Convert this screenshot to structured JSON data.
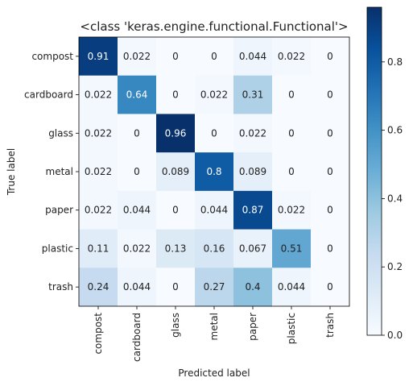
{
  "chart_data": {
    "type": "heatmap",
    "title": "<class 'keras.engine.functional.Functional'>",
    "xlabel": "Predicted label",
    "ylabel": "True label",
    "x_categories": [
      "compost",
      "cardboard",
      "glass",
      "metal",
      "paper",
      "plastic",
      "trash"
    ],
    "y_categories": [
      "compost",
      "cardboard",
      "glass",
      "metal",
      "paper",
      "plastic",
      "trash"
    ],
    "values": [
      [
        0.91,
        0.022,
        0,
        0,
        0.044,
        0.022,
        0
      ],
      [
        0.022,
        0.64,
        0,
        0.022,
        0.31,
        0,
        0
      ],
      [
        0.022,
        0,
        0.96,
        0,
        0.022,
        0,
        0
      ],
      [
        0.022,
        0,
        0.089,
        0.8,
        0.089,
        0,
        0
      ],
      [
        0.022,
        0.044,
        0,
        0.044,
        0.87,
        0.022,
        0
      ],
      [
        0.11,
        0.022,
        0.13,
        0.16,
        0.067,
        0.51,
        0
      ],
      [
        0.24,
        0.044,
        0,
        0.27,
        0.4,
        0.044,
        0
      ]
    ],
    "colormap": "Blues",
    "colorbar": {
      "range": [
        0,
        0.96
      ],
      "ticks": [
        0.0,
        0.2,
        0.4,
        0.6,
        0.8
      ],
      "tick_labels": [
        "0.0",
        "0.2",
        "0.4",
        "0.6",
        "0.8"
      ]
    },
    "grid": false
  }
}
